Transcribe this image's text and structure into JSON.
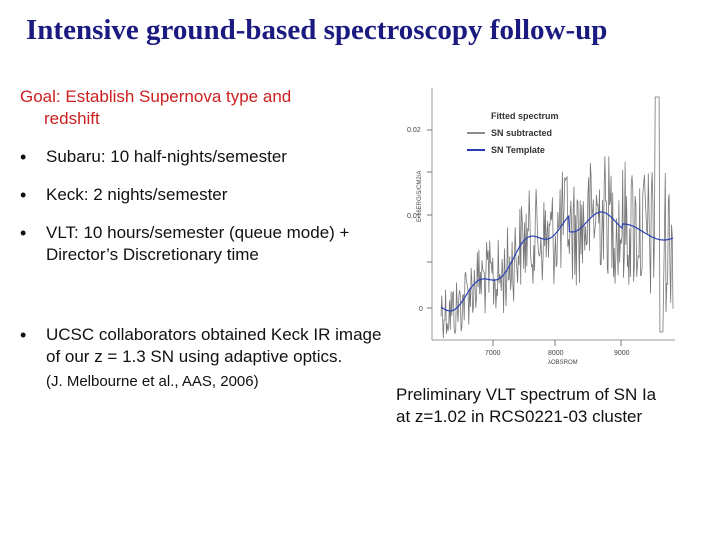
{
  "slide": {
    "title": "Intensive ground-based spectroscopy follow-up",
    "goal_line1": "Goal: Establish Supernova type and",
    "goal_line2": "redshift",
    "bullets": [
      {
        "marker": "•",
        "text": "Subaru: 10 half-nights/semester"
      },
      {
        "marker": "•",
        "text": "Keck: 2 nights/semester"
      },
      {
        "marker": "•",
        "text": "VLT:  10 hours/semester (queue mode) + Director’s Discretionary time"
      },
      {
        "marker": "•",
        "text": "UCSC collaborators obtained Keck IR image of our z = 1.3 SN using adaptive optics.",
        "note": "(J. Melbourne et al., AAS, 2006)"
      }
    ],
    "caption_line1": "Preliminary VLT spectrum of SN Ia",
    "caption_line2": "at z=1.02 in RCS0221-03 cluster"
  },
  "chart_data": {
    "type": "line",
    "ylabel": "E-16ERG/S/CM2/A",
    "xlabel": "λOBSROM",
    "xticks": [
      "7000",
      "8000",
      "9000"
    ],
    "yticks": [
      "0.02",
      "0.01",
      "0"
    ],
    "legend_title": "Fitted spectrum",
    "legend_placement": "top-right",
    "series": [
      {
        "name": "SN subtracted",
        "color": "#555555"
      },
      {
        "name": "SN Template",
        "color": "#2a3fb5"
      }
    ]
  }
}
